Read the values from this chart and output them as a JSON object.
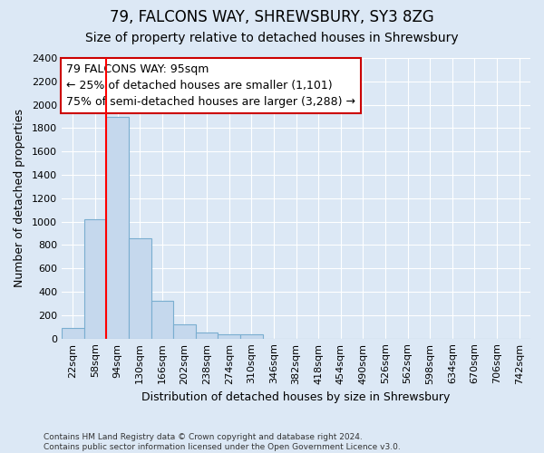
{
  "title1": "79, FALCONS WAY, SHREWSBURY, SY3 8ZG",
  "title2": "Size of property relative to detached houses in Shrewsbury",
  "xlabel": "Distribution of detached houses by size in Shrewsbury",
  "ylabel": "Number of detached properties",
  "footer": "Contains HM Land Registry data © Crown copyright and database right 2024.\nContains public sector information licensed under the Open Government Licence v3.0.",
  "bar_labels": [
    "22sqm",
    "58sqm",
    "94sqm",
    "130sqm",
    "166sqm",
    "202sqm",
    "238sqm",
    "274sqm",
    "310sqm",
    "346sqm",
    "382sqm",
    "418sqm",
    "454sqm",
    "490sqm",
    "526sqm",
    "562sqm",
    "598sqm",
    "634sqm",
    "670sqm",
    "706sqm",
    "742sqm"
  ],
  "bar_values": [
    90,
    1020,
    1900,
    860,
    320,
    120,
    50,
    40,
    35,
    0,
    0,
    0,
    0,
    0,
    0,
    0,
    0,
    0,
    0,
    0,
    0
  ],
  "bar_color": "#c5d8ed",
  "bar_edge_color": "#7aaed0",
  "red_line_index": 2,
  "annotation_text": "79 FALCONS WAY: 95sqm\n← 25% of detached houses are smaller (1,101)\n75% of semi-detached houses are larger (3,288) →",
  "annotation_box_color": "#ffffff",
  "annotation_border_color": "#cc0000",
  "ylim": [
    0,
    2400
  ],
  "yticks": [
    0,
    200,
    400,
    600,
    800,
    1000,
    1200,
    1400,
    1600,
    1800,
    2000,
    2200,
    2400
  ],
  "background_color": "#dce8f5",
  "plot_bg_color": "#dce8f5",
  "grid_color": "#ffffff",
  "title1_fontsize": 12,
  "title2_fontsize": 10
}
